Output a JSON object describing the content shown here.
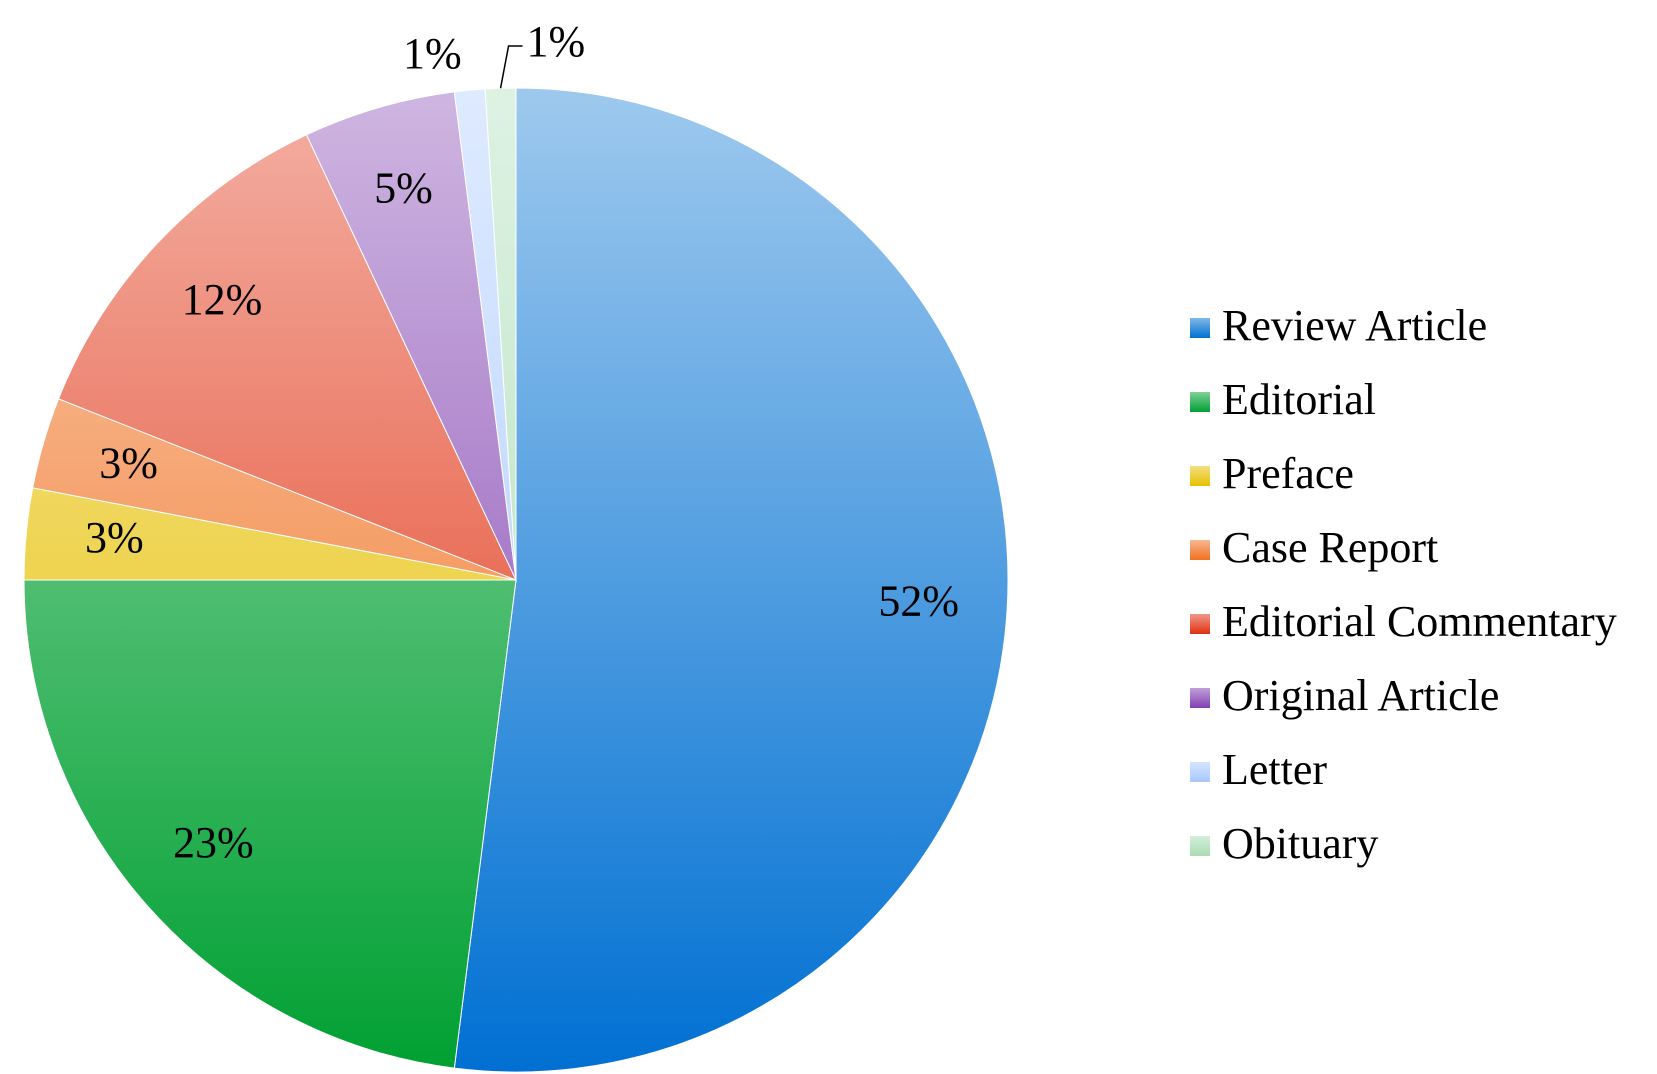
{
  "chart_data": {
    "type": "pie",
    "categories": [
      "Review Article",
      "Editorial",
      "Preface",
      "Case Report",
      "Editorial Commentary",
      "Original Article",
      "Letter",
      "Obituary"
    ],
    "values": [
      52,
      23,
      3,
      3,
      12,
      5,
      1,
      1
    ],
    "value_labels": [
      "52%",
      "23%",
      "3%",
      "3%",
      "12%",
      "5%",
      "1%",
      "1%"
    ],
    "colors": [
      "#0070d2",
      "#00a032",
      "#e6c000",
      "#f07020",
      "#e03010",
      "#8040b0",
      "#a8c8ff",
      "#a8dcb4"
    ],
    "legend": "right"
  }
}
